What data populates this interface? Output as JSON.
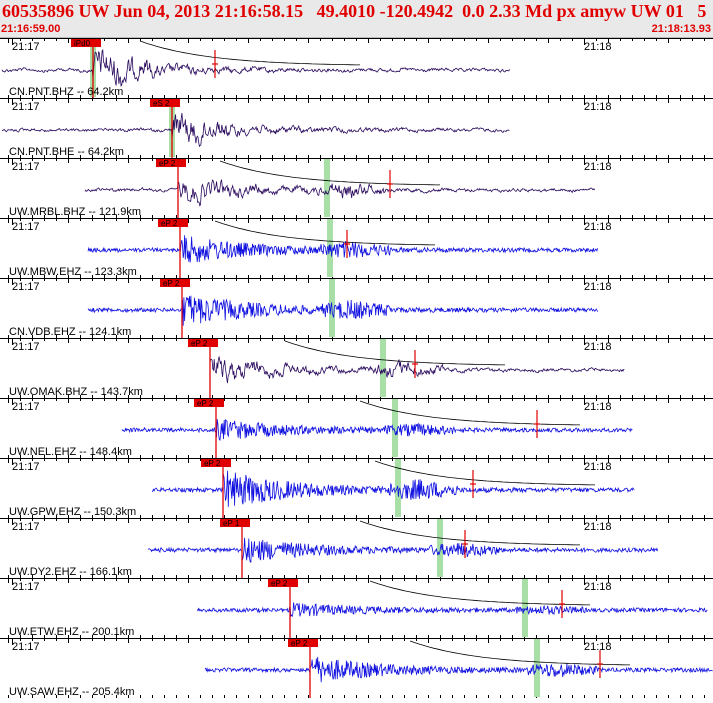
{
  "header": {
    "event_line": "60535896 UW Jun 04, 2013 21:16:58.15   49.4010 -120.4942  0.0 2.33 Md px amyw UW 01   5",
    "start_time": "21:16:59.00",
    "end_time": "21:18:13.93"
  },
  "time_ticks": {
    "left": "21:17",
    "right": "21:18"
  },
  "colors": {
    "header_text": "#e00000",
    "broadband_trace": "#2a0a5e",
    "short_period_trace": "#1010e0",
    "pick_flag": "#e00000",
    "pick_line": "#e00000",
    "theoretical_marker": "#a6dfa6"
  },
  "traces": [
    {
      "label": "CN.PNT.BHZ -- 64.2km",
      "pick_label": "iPd0",
      "kind": "broadband"
    },
    {
      "label": "CN.PNT.BHE -- 64.2km",
      "pick_label": "eS 2",
      "kind": "broadband"
    },
    {
      "label": "UW.MRBL.BHZ -- 121.9km",
      "pick_label": "eP 2",
      "kind": "broadband"
    },
    {
      "label": "UW.MBW.EHZ -- 123.3km",
      "pick_label": "eP 2",
      "kind": "short_period"
    },
    {
      "label": "CN.VDB.EHZ -- 124.1km",
      "pick_label": "eP 2",
      "kind": "short_period"
    },
    {
      "label": "UW.OMAK.BHZ -- 143.7km",
      "pick_label": "eP 2",
      "kind": "broadband"
    },
    {
      "label": "UW.NEL.EHZ -- 148.4km",
      "pick_label": "eP 2",
      "kind": "short_period"
    },
    {
      "label": "UW.GPW.EHZ -- 150.3km",
      "pick_label": "eP 2",
      "kind": "short_period"
    },
    {
      "label": "UW.DY2.EHZ -- 166.1km",
      "pick_label": "eP 1",
      "kind": "short_period"
    },
    {
      "label": "UW.ETW.EHZ -- 200.1km",
      "pick_label": "eP 2",
      "kind": "short_period"
    },
    {
      "label": "UW.SAW.EHZ -- 205.4km",
      "pick_label": "eP 2",
      "kind": "short_period"
    }
  ]
}
